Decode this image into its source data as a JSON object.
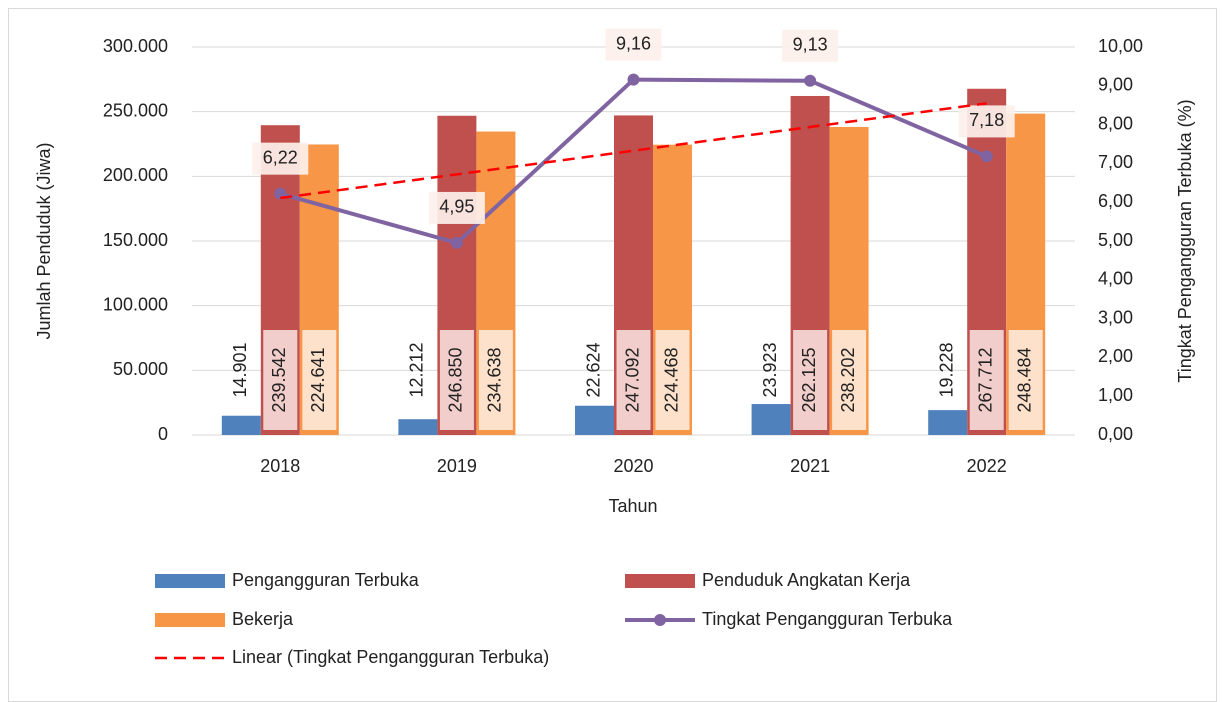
{
  "chart_data": {
    "type": "bar",
    "categories": [
      "2018",
      "2019",
      "2020",
      "2021",
      "2022"
    ],
    "x_label": "Tahun",
    "y_label": "Jumlah Penduduk (Jiwa)",
    "y2_label": "Tingkat Pengangguran Terbuka (%)",
    "ylim": [
      0,
      300000
    ],
    "yticks": [
      0,
      {
        "value": 50000,
        "label": "50.000"
      },
      {
        "value": 100000,
        "label": "100.000"
      },
      {
        "value": 150000,
        "label": "150.000"
      },
      {
        "value": 200000,
        "label": "200.000"
      },
      {
        "value": 250000,
        "label": "250.000"
      },
      {
        "value": 300000,
        "label": "300.000"
      }
    ],
    "y2lim": [
      0,
      10
    ],
    "y2ticks": [
      {
        "value": 0,
        "label": "0,00"
      },
      {
        "value": 1,
        "label": "1,00"
      },
      {
        "value": 2,
        "label": "2,00"
      },
      {
        "value": 3,
        "label": "3,00"
      },
      {
        "value": 4,
        "label": "4,00"
      },
      {
        "value": 5,
        "label": "5,00"
      },
      {
        "value": 6,
        "label": "6,00"
      },
      {
        "value": 7,
        "label": "7,00"
      },
      {
        "value": 8,
        "label": "8,00"
      },
      {
        "value": 9,
        "label": "9,00"
      },
      {
        "value": 10,
        "label": "10,00"
      }
    ],
    "grid": true,
    "legend": "bottom",
    "series": [
      {
        "name": "Pengangguran Terbuka",
        "color": "#4f81bd",
        "values": [
          14901,
          12212,
          22624,
          23923,
          19228
        ],
        "value_labels": [
          "14.901",
          "12.212",
          "22.624",
          "23.923",
          "19.228"
        ]
      },
      {
        "name": "Penduduk Angkatan Kerja",
        "color": "#c0504d",
        "values": [
          239542,
          246850,
          247092,
          262125,
          267712
        ],
        "value_labels": [
          "239.542",
          "246.850",
          "247.092",
          "262.125",
          "267.712"
        ]
      },
      {
        "name": "Bekerja",
        "color": "#f79646",
        "values": [
          224641,
          234638,
          224468,
          238202,
          248484
        ],
        "value_labels": [
          "224.641",
          "234.638",
          "224.468",
          "238.202",
          "248.484"
        ]
      },
      {
        "name": "Tingkat Pengangguran Terbuka",
        "type": "line",
        "axis": "y2",
        "marker": "circle",
        "color": "#8064a2",
        "values": [
          6.22,
          4.95,
          9.16,
          9.13,
          7.18
        ],
        "value_labels": [
          "6,22",
          "4,95",
          "9,16",
          "9,13",
          "7,18"
        ]
      },
      {
        "name": "Linear (Tingkat Pengangguran Terbuka)",
        "type": "line",
        "axis": "y2",
        "dash": true,
        "color": "#ff0000",
        "values": [
          6.108,
          6.718,
          7.328,
          7.938,
          8.548
        ]
      }
    ]
  }
}
